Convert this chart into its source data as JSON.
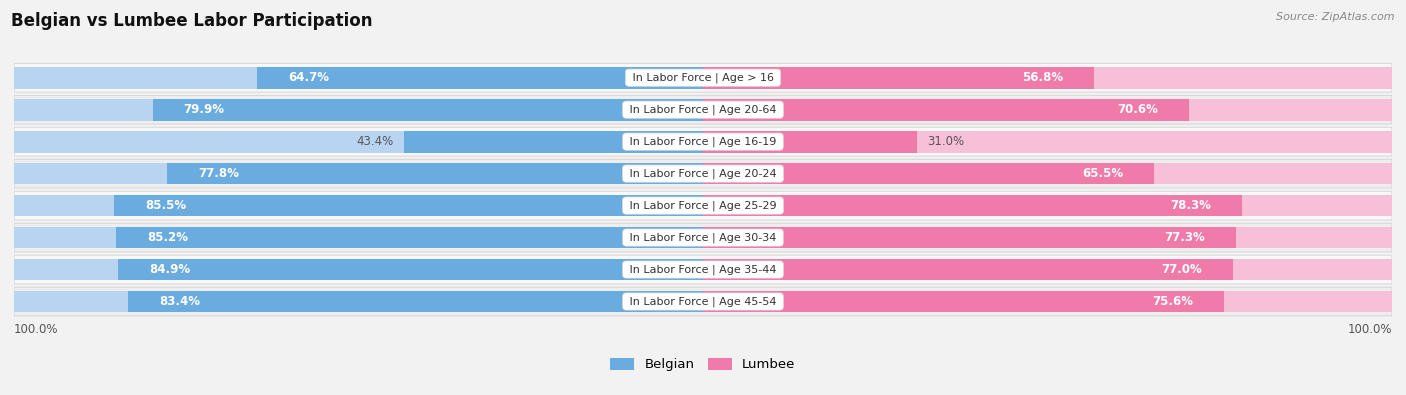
{
  "title": "Belgian vs Lumbee Labor Participation",
  "source": "Source: ZipAtlas.com",
  "categories": [
    "In Labor Force | Age > 16",
    "In Labor Force | Age 20-64",
    "In Labor Force | Age 16-19",
    "In Labor Force | Age 20-24",
    "In Labor Force | Age 25-29",
    "In Labor Force | Age 30-34",
    "In Labor Force | Age 35-44",
    "In Labor Force | Age 45-54"
  ],
  "belgian_values": [
    64.7,
    79.9,
    43.4,
    77.8,
    85.5,
    85.2,
    84.9,
    83.4
  ],
  "lumbee_values": [
    56.8,
    70.6,
    31.0,
    65.5,
    78.3,
    77.3,
    77.0,
    75.6
  ],
  "belgian_color": "#6aabe0",
  "lumbee_color": "#f07aaa",
  "belgian_light_color": "#b8d4f0",
  "lumbee_light_color": "#f8c0d8",
  "bg_color": "#f2f2f2",
  "row_bg_even": "#f8f8f8",
  "row_bg_odd": "#eeeeee",
  "bar_height": 0.68,
  "max_val": 100.0,
  "legend_belgian": "Belgian",
  "legend_lumbee": "Lumbee",
  "label_fontsize": 8.5,
  "cat_fontsize": 8.0
}
